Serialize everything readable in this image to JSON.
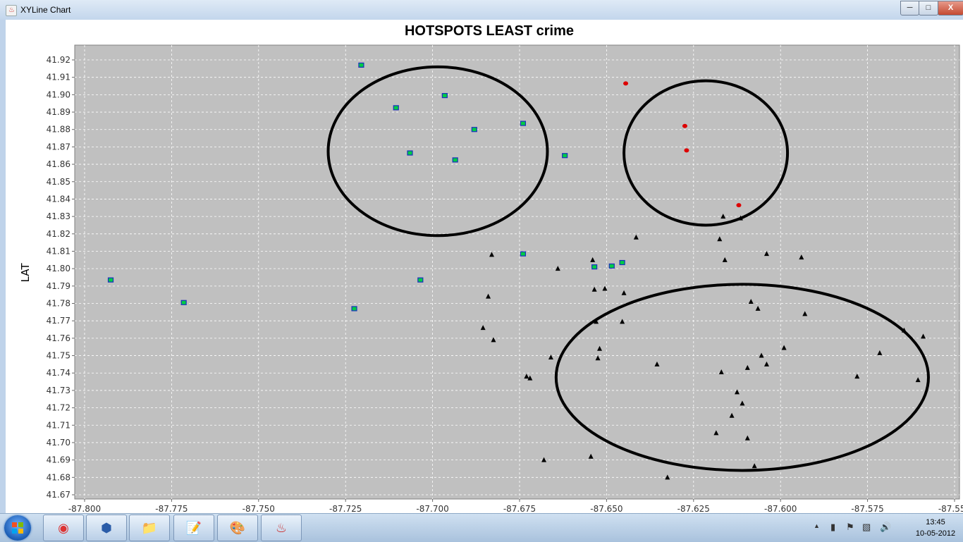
{
  "window": {
    "title": "XYLine Chart",
    "close_glyph": "X"
  },
  "taskbar": {
    "apps": [
      "chrome-icon",
      "virtualbox-icon",
      "file-explorer-icon",
      "notepad-icon",
      "paint-icon",
      "java-icon"
    ],
    "time": "13:45",
    "date": "10-05-2012"
  },
  "chart_data": {
    "type": "scatter",
    "title": "HOTSPOTS LEAST crime",
    "xlabel": "",
    "ylabel": "LAT",
    "xlim": [
      -87.8,
      -87.55
    ],
    "ylim": [
      41.67,
      41.925
    ],
    "grid": true,
    "x_ticks": [
      "-87.800",
      "-87.775",
      "-87.750",
      "-87.725",
      "-87.700",
      "-87.675",
      "-87.650",
      "-87.625",
      "-87.600",
      "-87.575",
      "-87.550"
    ],
    "y_ticks": [
      "41.67",
      "41.68",
      "41.69",
      "41.70",
      "41.71",
      "41.72",
      "41.73",
      "41.74",
      "41.75",
      "41.76",
      "41.77",
      "41.78",
      "41.79",
      "41.80",
      "41.81",
      "41.82",
      "41.83",
      "41.84",
      "41.85",
      "41.86",
      "41.87",
      "41.88",
      "41.89",
      "41.90",
      "41.91",
      "41.92"
    ],
    "colors": {
      "plot_bg": "#c0c0c0",
      "grid": "#ffffff",
      "square_fill": "#00cc44",
      "square_edge": "#1a2fbf",
      "circle": "#dd0000",
      "triangle": "#000000"
    },
    "series": [
      {
        "marker": "square",
        "points": [
          [
            -87.7205,
            41.917
          ],
          [
            -87.6965,
            41.8995
          ],
          [
            -87.7105,
            41.8925
          ],
          [
            -87.688,
            41.88
          ],
          [
            -87.674,
            41.8835
          ],
          [
            -87.7065,
            41.8665
          ],
          [
            -87.6935,
            41.8625
          ],
          [
            -87.662,
            41.865
          ],
          [
            -87.674,
            41.8085
          ],
          [
            -87.6535,
            41.801
          ],
          [
            -87.6485,
            41.8015
          ],
          [
            -87.6455,
            41.8035
          ],
          [
            -87.7035,
            41.7935
          ],
          [
            -87.7925,
            41.7935
          ],
          [
            -87.7715,
            41.7805
          ],
          [
            -87.7225,
            41.777
          ]
        ]
      },
      {
        "marker": "circle",
        "points": [
          [
            -87.6445,
            41.9065
          ],
          [
            -87.6275,
            41.882
          ],
          [
            -87.627,
            41.868
          ],
          [
            -87.612,
            41.8365
          ]
        ]
      },
      {
        "marker": "triangle",
        "points": [
          [
            -87.683,
            41.808
          ],
          [
            -87.684,
            41.784
          ],
          [
            -87.6855,
            41.766
          ],
          [
            -87.6825,
            41.759
          ],
          [
            -87.666,
            41.749
          ],
          [
            -87.673,
            41.738
          ],
          [
            -87.672,
            41.737
          ],
          [
            -87.664,
            41.8
          ],
          [
            -87.654,
            41.805
          ],
          [
            -87.6535,
            41.788
          ],
          [
            -87.6505,
            41.7885
          ],
          [
            -87.653,
            41.7695
          ],
          [
            -87.652,
            41.754
          ],
          [
            -87.6525,
            41.7485
          ],
          [
            -87.6455,
            41.7695
          ],
          [
            -87.645,
            41.786
          ],
          [
            -87.6415,
            41.818
          ],
          [
            -87.6545,
            41.692
          ],
          [
            -87.668,
            41.69
          ],
          [
            -87.6325,
            41.68
          ],
          [
            -87.6355,
            41.745
          ],
          [
            -87.6165,
            41.83
          ],
          [
            -87.6115,
            41.829
          ],
          [
            -87.6175,
            41.817
          ],
          [
            -87.616,
            41.805
          ],
          [
            -87.604,
            41.8085
          ],
          [
            -87.594,
            41.8065
          ],
          [
            -87.6085,
            41.781
          ],
          [
            -87.6065,
            41.777
          ],
          [
            -87.593,
            41.774
          ],
          [
            -87.599,
            41.7545
          ],
          [
            -87.6055,
            41.75
          ],
          [
            -87.604,
            41.745
          ],
          [
            -87.6095,
            41.743
          ],
          [
            -87.617,
            41.7405
          ],
          [
            -87.6125,
            41.729
          ],
          [
            -87.611,
            41.7225
          ],
          [
            -87.614,
            41.7155
          ],
          [
            -87.6185,
            41.7055
          ],
          [
            -87.6095,
            41.7025
          ],
          [
            -87.6075,
            41.6865
          ],
          [
            -87.578,
            41.738
          ],
          [
            -87.5715,
            41.7515
          ],
          [
            -87.5645,
            41.7645
          ],
          [
            -87.559,
            41.761
          ],
          [
            -87.5605,
            41.736
          ]
        ]
      }
    ],
    "annotations": [
      {
        "shape": "ellipse",
        "cx": -87.6985,
        "cy": 41.8675,
        "rx": 0.0315,
        "ry": 0.0485
      },
      {
        "shape": "ellipse",
        "cx": -87.6215,
        "cy": 41.8665,
        "rx": 0.0235,
        "ry": 0.0415
      },
      {
        "shape": "ellipse",
        "cx": -87.611,
        "cy": 41.7375,
        "rx": 0.0535,
        "ry": 0.0535
      }
    ]
  }
}
